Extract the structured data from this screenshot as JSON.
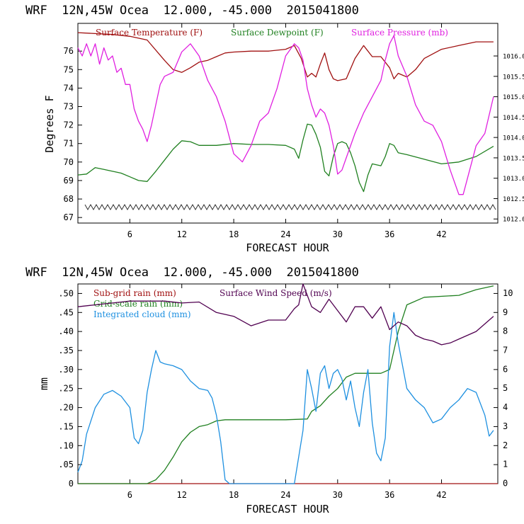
{
  "chart_data": [
    {
      "type": "line",
      "title": "WRF  12N,45W Ocea  12.000, -45.000  2015041800",
      "xlabel": "FORECAST HOUR",
      "ylabel": "Degrees F",
      "xlim": [
        0,
        48.5
      ],
      "xticks": [
        6,
        12,
        18,
        24,
        30,
        36,
        42
      ],
      "ylim": [
        66.7,
        77.5
      ],
      "yticks": [
        67,
        68,
        69,
        70,
        71,
        72,
        73,
        74,
        75,
        76
      ],
      "y2lim": [
        1011.9,
        1016.8
      ],
      "y2ticks": [
        "1012.0",
        "1012.5",
        "1013.0",
        "1013.5",
        "1014.0",
        "1014.5",
        "1015.0",
        "1015.5",
        "1016.0"
      ],
      "series": [
        {
          "name": "Surface Temperature (F)",
          "color": "#a01010",
          "axis": "left",
          "x": [
            0,
            4,
            6,
            8,
            10,
            11,
            12,
            13,
            14,
            15,
            16,
            17,
            18,
            20,
            22,
            24,
            25,
            25.8,
            26.5,
            27,
            27.5,
            28,
            28.5,
            29,
            29.5,
            30,
            31,
            32,
            33,
            34,
            35,
            36,
            36.5,
            37,
            37.5,
            38,
            39,
            40,
            42,
            44,
            46,
            48
          ],
          "y": [
            77.0,
            76.9,
            76.8,
            76.6,
            75.5,
            75.0,
            74.85,
            75.1,
            75.4,
            75.5,
            75.7,
            75.9,
            75.95,
            76.0,
            76.0,
            76.1,
            76.3,
            75.6,
            74.6,
            74.8,
            74.6,
            75.3,
            75.9,
            75.0,
            74.5,
            74.4,
            74.5,
            75.6,
            76.3,
            75.7,
            75.7,
            75.1,
            74.5,
            74.8,
            74.7,
            74.6,
            75.0,
            75.6,
            76.1,
            76.3,
            76.5,
            76.5
          ]
        },
        {
          "name": "Surface Dewpoint (F)",
          "color": "#208020",
          "axis": "left",
          "x": [
            0,
            1,
            2,
            3,
            4,
            5,
            6,
            7,
            8,
            9,
            10,
            11,
            12,
            13,
            14,
            16,
            18,
            20,
            22,
            24,
            25,
            25.5,
            26,
            26.5,
            27,
            27.5,
            28,
            28.5,
            29,
            29.5,
            30,
            30.5,
            31,
            31.5,
            32,
            32.5,
            33,
            33.5,
            34,
            35,
            35.5,
            36,
            36.5,
            37,
            38,
            40,
            42,
            44,
            46,
            48
          ],
          "y": [
            69.3,
            69.35,
            69.7,
            69.6,
            69.5,
            69.4,
            69.2,
            69.0,
            68.95,
            69.5,
            70.1,
            70.7,
            71.15,
            71.1,
            70.9,
            70.9,
            71.0,
            70.95,
            70.95,
            70.9,
            70.7,
            70.2,
            71.2,
            72.05,
            72.0,
            71.5,
            70.8,
            69.5,
            69.25,
            70.3,
            71.0,
            71.1,
            71.0,
            70.5,
            69.8,
            68.9,
            68.4,
            69.3,
            69.9,
            69.8,
            70.3,
            71.0,
            70.9,
            70.5,
            70.4,
            70.15,
            69.9,
            70.0,
            70.3,
            70.85
          ]
        },
        {
          "name": "Surface Pressure (mb)",
          "color": "#e020e0",
          "axis": "right",
          "x": [
            0,
            0.5,
            1,
            1.5,
            2,
            2.5,
            3,
            3.5,
            4,
            4.5,
            5,
            5.5,
            6,
            6.5,
            7,
            7.5,
            8,
            8.5,
            9,
            9.5,
            10,
            11,
            12,
            13,
            14,
            15,
            16,
            17,
            18,
            19,
            20,
            21,
            22,
            23,
            24,
            25,
            25.5,
            26,
            26.5,
            27,
            27.5,
            28,
            28.5,
            29,
            29.5,
            30,
            30.5,
            31,
            32,
            33,
            34,
            35,
            35.5,
            36,
            36.5,
            37,
            38,
            39,
            40,
            41,
            42,
            43,
            44,
            44.5,
            45,
            46,
            47,
            48
          ],
          "y": [
            1016.2,
            1016.0,
            1016.3,
            1016.0,
            1016.3,
            1015.8,
            1016.2,
            1015.9,
            1016.0,
            1015.6,
            1015.7,
            1015.3,
            1015.3,
            1014.7,
            1014.4,
            1014.2,
            1013.9,
            1014.3,
            1014.8,
            1015.3,
            1015.5,
            1015.6,
            1016.1,
            1016.3,
            1016.0,
            1015.4,
            1015.0,
            1014.4,
            1013.6,
            1013.4,
            1013.8,
            1014.4,
            1014.6,
            1015.2,
            1016.0,
            1016.3,
            1016.2,
            1015.9,
            1015.2,
            1014.8,
            1014.5,
            1014.7,
            1014.6,
            1014.3,
            1013.8,
            1013.1,
            1013.2,
            1013.5,
            1014.1,
            1014.6,
            1015.0,
            1015.4,
            1015.9,
            1016.3,
            1016.5,
            1016.0,
            1015.5,
            1014.8,
            1014.4,
            1014.3,
            1013.9,
            1013.2,
            1012.6,
            1012.6,
            1013.0,
            1013.8,
            1014.1,
            1015.0
          ]
        }
      ]
    },
    {
      "type": "line",
      "title": "WRF  12N,45W Ocea  12.000, -45.000  2015041800",
      "xlabel": "FORECAST HOUR",
      "ylabel": "mm",
      "xlim": [
        0,
        48.5
      ],
      "xticks": [
        6,
        12,
        18,
        24,
        30,
        36,
        42
      ],
      "ylim": [
        0,
        0.525
      ],
      "yticks": [
        "0",
        ".05",
        ".10",
        ".15",
        ".20",
        ".25",
        ".30",
        ".35",
        ".40",
        ".45",
        ".50"
      ],
      "y2lim": [
        0,
        10.5
      ],
      "y2ticks": [
        "0",
        "1",
        "2",
        "3",
        "4",
        "5",
        "6",
        "7",
        "8",
        "9",
        "10"
      ],
      "series": [
        {
          "name": "Sub-grid rain (mm)",
          "color": "#a01010",
          "axis": "left",
          "x": [
            0,
            48.5
          ],
          "y": [
            0,
            0
          ]
        },
        {
          "name": "Grid-scale rain (mm)",
          "color": "#208020",
          "axis": "left",
          "x": [
            0,
            8,
            9,
            10,
            11,
            12,
            13,
            14,
            15,
            16,
            17,
            24,
            26.5,
            27,
            28,
            29,
            30,
            31,
            32,
            33,
            34,
            35,
            36,
            36.5,
            37,
            38,
            40,
            44,
            46,
            48
          ],
          "y": [
            0,
            0,
            0.01,
            0.035,
            0.07,
            0.11,
            0.135,
            0.15,
            0.155,
            0.165,
            0.168,
            0.168,
            0.17,
            0.19,
            0.205,
            0.23,
            0.25,
            0.28,
            0.29,
            0.29,
            0.29,
            0.29,
            0.3,
            0.35,
            0.4,
            0.47,
            0.49,
            0.495,
            0.51,
            0.52
          ]
        },
        {
          "name": "Integrated cloud (mm)",
          "color": "#1e90e0",
          "axis": "left",
          "x": [
            0,
            0.5,
            1,
            2,
            3,
            4,
            5,
            6,
            6.5,
            7,
            7.5,
            8,
            8.5,
            9,
            9.5,
            10,
            11,
            12,
            13,
            14,
            15,
            15.5,
            16,
            16.5,
            17,
            17.5,
            20,
            25,
            26,
            26.5,
            27,
            27.5,
            28,
            28.5,
            29,
            29.5,
            30,
            30.5,
            31,
            31.5,
            32,
            32.5,
            33,
            33.5,
            34,
            34.5,
            35,
            35.5,
            36,
            36.5,
            37,
            38,
            39,
            40,
            41,
            42,
            43,
            44,
            45,
            46,
            47,
            47.5,
            48
          ],
          "y": [
            0.03,
            0.06,
            0.13,
            0.2,
            0.235,
            0.245,
            0.23,
            0.2,
            0.12,
            0.105,
            0.14,
            0.24,
            0.3,
            0.35,
            0.32,
            0.315,
            0.31,
            0.3,
            0.27,
            0.25,
            0.245,
            0.225,
            0.18,
            0.11,
            0.01,
            0.0,
            0.0,
            0.0,
            0.14,
            0.3,
            0.25,
            0.19,
            0.29,
            0.31,
            0.25,
            0.29,
            0.3,
            0.275,
            0.22,
            0.27,
            0.2,
            0.15,
            0.24,
            0.3,
            0.16,
            0.08,
            0.06,
            0.12,
            0.36,
            0.45,
            0.37,
            0.25,
            0.22,
            0.2,
            0.16,
            0.17,
            0.2,
            0.22,
            0.25,
            0.24,
            0.18,
            0.125,
            0.14
          ]
        },
        {
          "name": "Surface Wind Speed (m/s)",
          "color": "#500050",
          "axis": "right",
          "x": [
            0,
            2,
            4,
            6,
            8,
            10,
            12,
            14,
            16,
            18,
            20,
            22,
            24,
            25,
            25.5,
            26,
            26.5,
            27,
            28,
            29,
            30,
            31,
            32,
            33,
            34,
            35,
            36,
            37,
            38,
            39,
            40,
            41,
            42,
            43,
            44,
            46,
            48
          ],
          "y": [
            9.3,
            9.4,
            9.5,
            9.6,
            9.6,
            9.6,
            9.5,
            9.55,
            9.0,
            8.8,
            8.3,
            8.6,
            8.6,
            9.2,
            9.4,
            10.5,
            9.9,
            9.3,
            9.0,
            9.7,
            9.1,
            8.5,
            9.3,
            9.3,
            8.7,
            9.3,
            8.1,
            8.5,
            8.3,
            7.8,
            7.6,
            7.5,
            7.3,
            7.4,
            7.6,
            8.0,
            8.8
          ]
        }
      ]
    }
  ]
}
